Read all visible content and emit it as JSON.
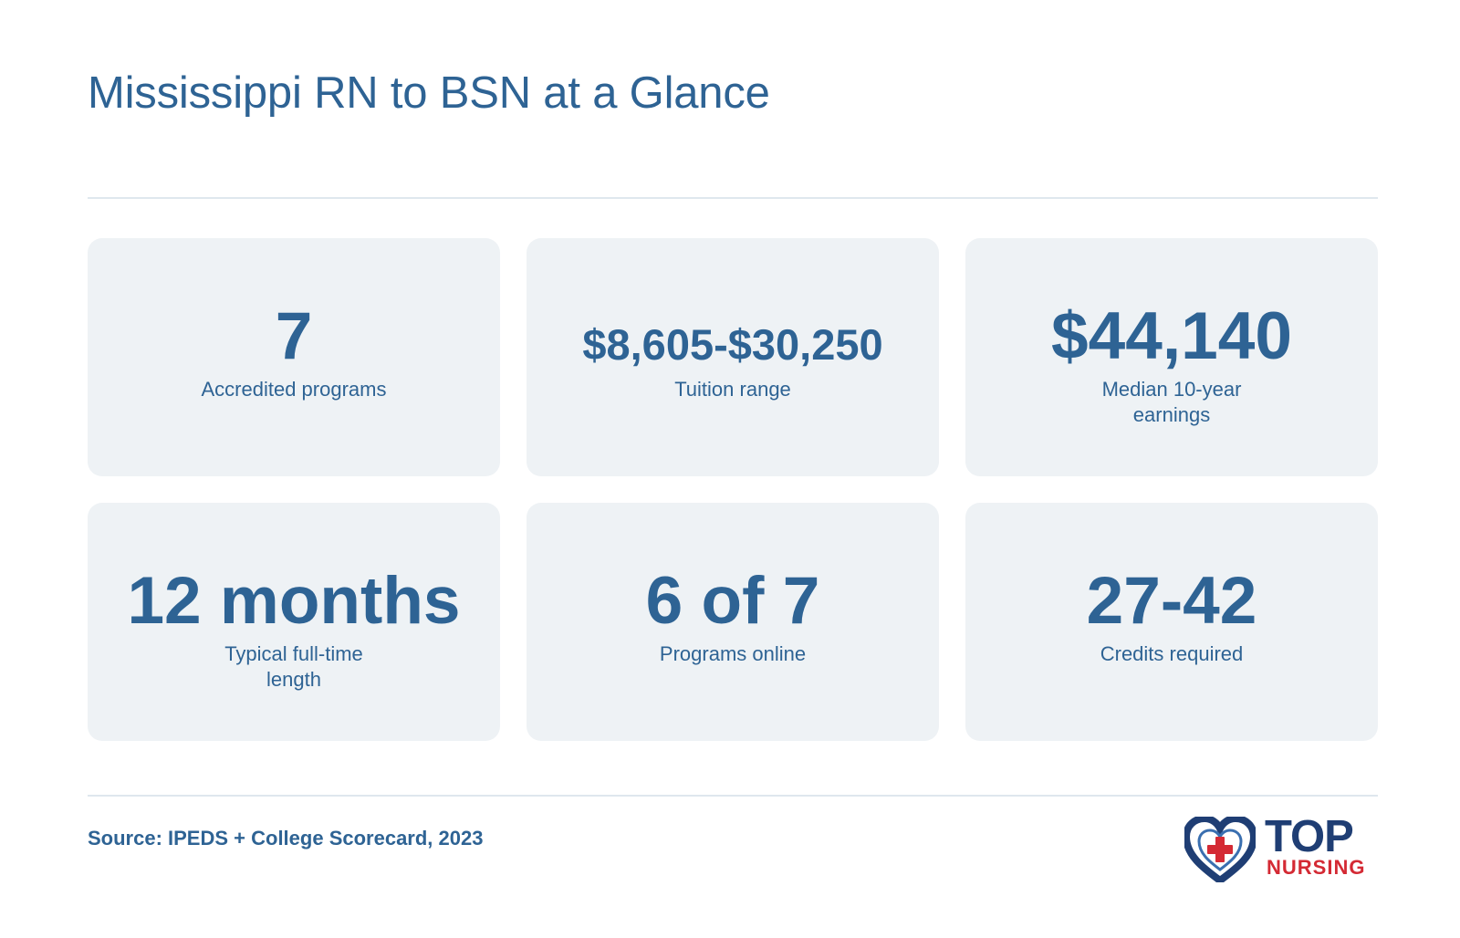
{
  "title": "Mississippi RN to BSN at a Glance",
  "stats": [
    {
      "value": "7",
      "label": "Accredited programs"
    },
    {
      "value": "$8,605-$30,250",
      "label": "Tuition range"
    },
    {
      "value": "$44,140",
      "label": "Median 10-year earnings"
    },
    {
      "value": "12 months",
      "label": "Typical full-time length"
    },
    {
      "value": "6 of 7",
      "label": "Programs online"
    },
    {
      "value": "27-42",
      "label": "Credits required"
    }
  ],
  "source": "Source: IPEDS + College Scorecard, 2023",
  "logo": {
    "line1": "TOP",
    "line2": "NURSING",
    "icon": "heart-cross-icon"
  },
  "colors": {
    "primary": "#2e6394",
    "card_background": "#eef2f5",
    "logo_navy": "#1f3e74",
    "logo_red": "#d42a34",
    "divider": "#dfe7ee"
  }
}
